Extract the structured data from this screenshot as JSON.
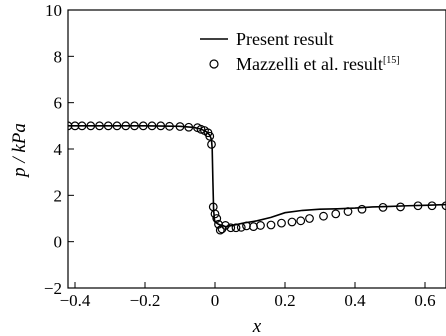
{
  "chart_data": {
    "type": "line",
    "xlabel": "x",
    "ylabel": "p / kPa",
    "xlim": [
      -0.42,
      0.66
    ],
    "ylim": [
      -2,
      10
    ],
    "xticks": [
      "−0.4",
      "−0.2",
      "0",
      "0.2",
      "0.4",
      "0.6"
    ],
    "xtick_values": [
      -0.4,
      -0.2,
      0,
      0.2,
      0.4,
      0.6
    ],
    "yticks": [
      "−2",
      "0",
      "2",
      "4",
      "6",
      "8",
      "10"
    ],
    "ytick_values": [
      -2,
      0,
      2,
      4,
      6,
      8,
      10
    ],
    "legend": {
      "position": "top-right",
      "entries": [
        {
          "label": "Present result",
          "marker": "line",
          "sup": ""
        },
        {
          "label": "Mazzelli et al. result",
          "marker": "circle",
          "sup": "[15]"
        }
      ]
    },
    "series": [
      {
        "name": "Present result",
        "style": "line",
        "x": [
          -0.42,
          -0.3,
          -0.2,
          -0.1,
          -0.06,
          -0.04,
          -0.025,
          -0.015,
          -0.01,
          -0.008,
          -0.006,
          -0.004,
          -0.002,
          0.0,
          0.005,
          0.01,
          0.02,
          0.03,
          0.05,
          0.08,
          0.12,
          0.16,
          0.2,
          0.25,
          0.3,
          0.35,
          0.4,
          0.45,
          0.5,
          0.55,
          0.6,
          0.66
        ],
        "y": [
          5.0,
          5.0,
          5.0,
          4.98,
          4.93,
          4.86,
          4.75,
          4.6,
          4.4,
          4.0,
          2.6,
          1.4,
          1.0,
          0.85,
          0.8,
          0.75,
          0.7,
          0.65,
          0.7,
          0.8,
          0.9,
          1.05,
          1.25,
          1.35,
          1.4,
          1.42,
          1.45,
          1.5,
          1.52,
          1.55,
          1.57,
          1.6
        ]
      },
      {
        "name": "Mazzelli et al. result",
        "style": "circle",
        "x": [
          -0.42,
          -0.4,
          -0.38,
          -0.355,
          -0.33,
          -0.305,
          -0.28,
          -0.255,
          -0.23,
          -0.205,
          -0.18,
          -0.155,
          -0.13,
          -0.1,
          -0.075,
          -0.05,
          -0.04,
          -0.03,
          -0.02,
          -0.015,
          -0.01,
          -0.005,
          0.0,
          0.005,
          0.01,
          0.015,
          0.02,
          0.03,
          0.045,
          0.06,
          0.075,
          0.09,
          0.11,
          0.13,
          0.16,
          0.19,
          0.22,
          0.245,
          0.27,
          0.31,
          0.345,
          0.38,
          0.42,
          0.48,
          0.53,
          0.58,
          0.62,
          0.66
        ],
        "y": [
          5.0,
          5.0,
          5.0,
          5.0,
          5.0,
          5.0,
          5.0,
          5.0,
          5.0,
          5.0,
          5.0,
          5.0,
          4.98,
          4.97,
          4.94,
          4.92,
          4.85,
          4.8,
          4.7,
          4.55,
          4.2,
          1.5,
          1.2,
          1.0,
          0.75,
          0.5,
          0.55,
          0.7,
          0.6,
          0.6,
          0.62,
          0.68,
          0.65,
          0.7,
          0.72,
          0.8,
          0.85,
          0.9,
          1.0,
          1.1,
          1.2,
          1.3,
          1.4,
          1.48,
          1.5,
          1.55,
          1.55,
          1.55
        ]
      }
    ]
  }
}
